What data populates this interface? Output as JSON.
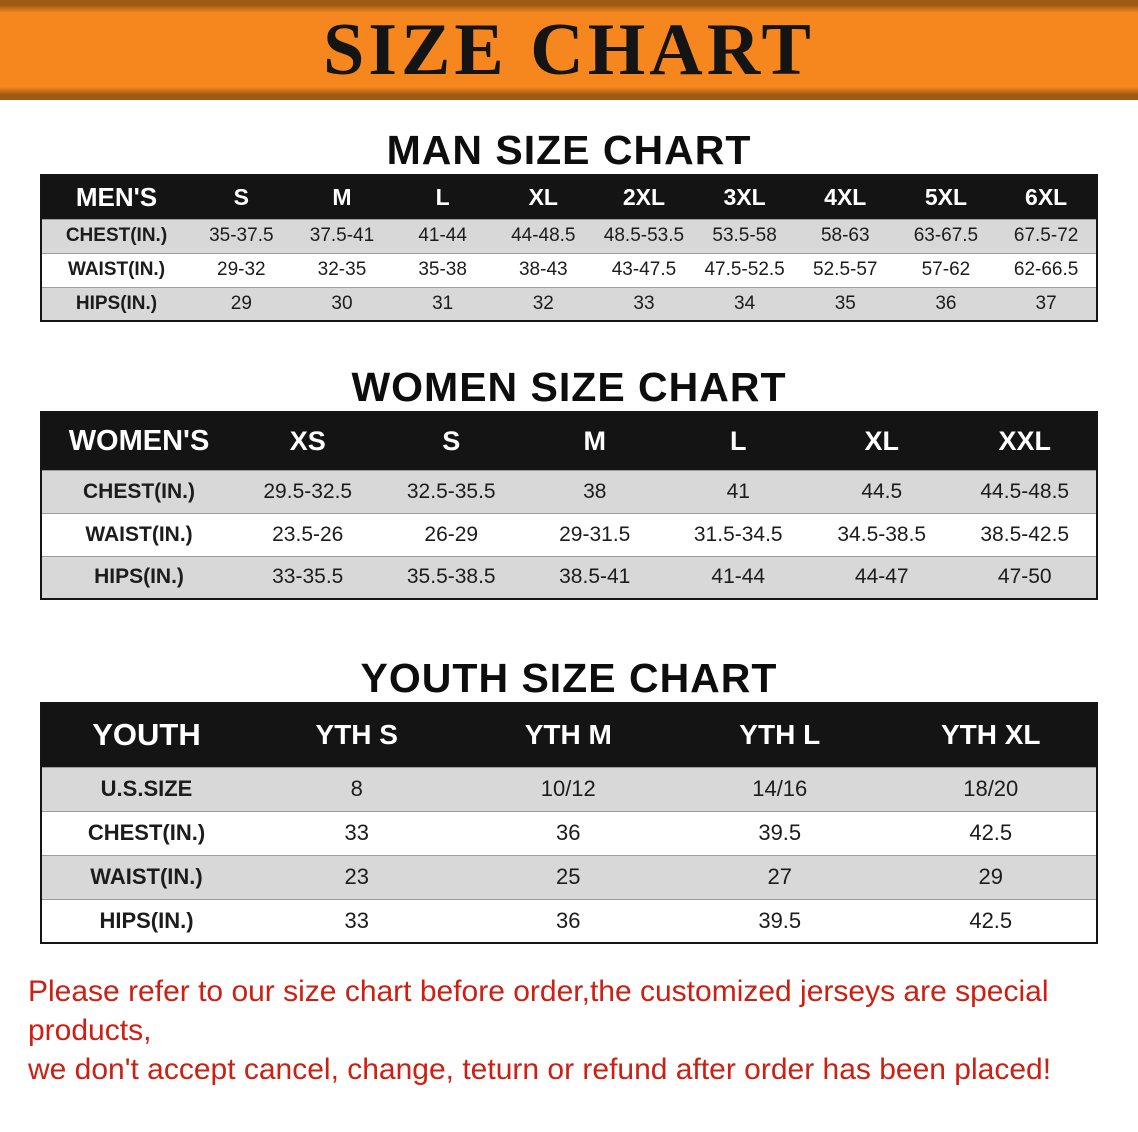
{
  "banner": {
    "title": "SIZE CHART"
  },
  "colors": {
    "banner_orange": "#f6871f",
    "header_black": "#141414",
    "row_gray": "#d8d8d8",
    "footer_red": "#cd1f12"
  },
  "men": {
    "heading": "MAN SIZE CHART",
    "header": [
      "MEN'S",
      "S",
      "M",
      "L",
      "XL",
      "2XL",
      "3XL",
      "4XL",
      "5XL",
      "6XL"
    ],
    "rows": [
      {
        "label": "CHEST(IN.)",
        "values": [
          "35-37.5",
          "37.5-41",
          "41-44",
          "44-48.5",
          "48.5-53.5",
          "53.5-58",
          "58-63",
          "63-67.5",
          "67.5-72"
        ]
      },
      {
        "label": "WAIST(IN.)",
        "values": [
          "29-32",
          "32-35",
          "35-38",
          "38-43",
          "43-47.5",
          "47.5-52.5",
          "52.5-57",
          "57-62",
          "62-66.5"
        ]
      },
      {
        "label": "HIPS(IN.)",
        "values": [
          "29",
          "30",
          "31",
          "32",
          "33",
          "34",
          "35",
          "36",
          "37"
        ]
      }
    ]
  },
  "women": {
    "heading": "WOMEN SIZE CHART",
    "header": [
      "WOMEN'S",
      "XS",
      "S",
      "M",
      "L",
      "XL",
      "XXL"
    ],
    "rows": [
      {
        "label": "CHEST(IN.)",
        "values": [
          "29.5-32.5",
          "32.5-35.5",
          "38",
          "41",
          "44.5",
          "44.5-48.5"
        ]
      },
      {
        "label": "WAIST(IN.)",
        "values": [
          "23.5-26",
          "26-29",
          "29-31.5",
          "31.5-34.5",
          "34.5-38.5",
          "38.5-42.5"
        ]
      },
      {
        "label": "HIPS(IN.)",
        "values": [
          "33-35.5",
          "35.5-38.5",
          "38.5-41",
          "41-44",
          "44-47",
          "47-50"
        ]
      }
    ]
  },
  "youth": {
    "heading": "YOUTH SIZE CHART",
    "header": [
      "YOUTH",
      "YTH S",
      "YTH M",
      "YTH L",
      "YTH XL"
    ],
    "rows": [
      {
        "label": "U.S.SIZE",
        "values": [
          "8",
          "10/12",
          "14/16",
          "18/20"
        ]
      },
      {
        "label": "CHEST(IN.)",
        "values": [
          "33",
          "36",
          "39.5",
          "42.5"
        ]
      },
      {
        "label": "WAIST(IN.)",
        "values": [
          "23",
          "25",
          "27",
          "29"
        ]
      },
      {
        "label": "HIPS(IN.)",
        "values": [
          "33",
          "36",
          "39.5",
          "42.5"
        ]
      }
    ]
  },
  "footer": {
    "line1": "Please refer to our size chart before order,the customized jerseys are special products,",
    "line2": "we don't accept cancel, change, teturn or refund after order has been placed!"
  }
}
